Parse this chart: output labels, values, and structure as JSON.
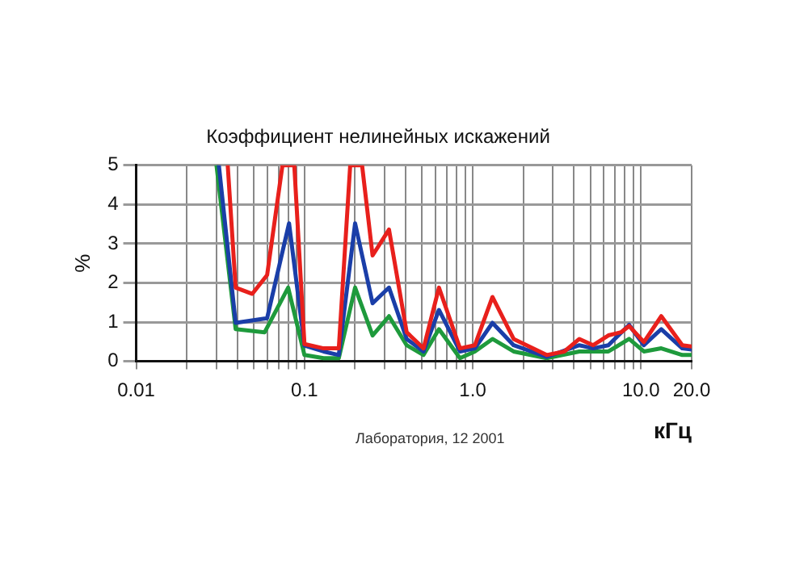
{
  "chart_data": {
    "type": "line",
    "title": "Коэффициент нелинейных искажений",
    "xlabel": "кГц",
    "ylabel": "%",
    "annotations": [
      "Лаборатория, 12 2001"
    ],
    "log": "x",
    "grid": true,
    "legend": false,
    "marker": "none",
    "line_style": "solid",
    "xlim": [
      0.01,
      20
    ],
    "ylim": [
      0,
      5
    ],
    "yticks": [
      0,
      1,
      2,
      3,
      4,
      5
    ],
    "xticks": [
      0.01,
      {
        "value": 0.02,
        "label": null
      },
      {
        "value": 0.03,
        "label": null
      },
      {
        "value": 0.04,
        "label": null
      },
      {
        "value": 0.05,
        "label": null
      },
      {
        "value": 0.06,
        "label": null
      },
      {
        "value": 0.07,
        "label": null
      },
      {
        "value": 0.08,
        "label": null
      },
      {
        "value": 0.09,
        "label": null
      },
      0.1,
      {
        "value": 0.2,
        "label": null
      },
      {
        "value": 0.3,
        "label": null
      },
      {
        "value": 0.4,
        "label": null
      },
      {
        "value": 0.5,
        "label": null
      },
      {
        "value": 0.6,
        "label": null
      },
      {
        "value": 0.7,
        "label": null
      },
      {
        "value": 0.8,
        "label": null
      },
      {
        "value": 0.9,
        "label": null
      },
      {
        "value": 1,
        "label": "1.0"
      },
      {
        "value": 2,
        "label": null
      },
      {
        "value": 3,
        "label": null
      },
      {
        "value": 4,
        "label": null
      },
      {
        "value": 5,
        "label": null
      },
      {
        "value": 6,
        "label": null
      },
      {
        "value": 7,
        "label": null
      },
      {
        "value": 8,
        "label": null
      },
      {
        "value": 9,
        "label": null
      },
      {
        "value": 10,
        "label": "10.0"
      },
      {
        "value": 20,
        "label": "20.0"
      }
    ],
    "series": [
      {
        "color": "#e8201c",
        "x": [
          0.035,
          0.039,
          0.049,
          0.06,
          0.074,
          0.087,
          0.1,
          0.13,
          0.16,
          0.187,
          0.22,
          0.254,
          0.318,
          0.405,
          0.51,
          0.63,
          0.84,
          1.03,
          1.31,
          1.75,
          2.75,
          3.5,
          4.3,
          5.2,
          6.4,
          7.6,
          8.5,
          10.4,
          13.2,
          17.6,
          20
        ],
        "values": [
          5,
          1.88,
          1.72,
          2.2,
          5,
          5,
          0.44,
          0.33,
          0.33,
          5,
          5,
          2.7,
          3.36,
          0.74,
          0.33,
          1.88,
          0.33,
          0.41,
          1.64,
          0.57,
          0.16,
          0.25,
          0.57,
          0.41,
          0.66,
          0.74,
          0.9,
          0.49,
          1.15,
          0.41,
          0.38
        ]
      },
      {
        "color": "#1a3ea8",
        "x": [
          0.031,
          0.039,
          0.06,
          0.081,
          0.1,
          0.13,
          0.16,
          0.2,
          0.254,
          0.318,
          0.405,
          0.51,
          0.63,
          0.84,
          1.03,
          1.31,
          1.75,
          2.75,
          4.3,
          5.2,
          6.4,
          8.5,
          10.4,
          13.2,
          17.6,
          20
        ],
        "values": [
          5,
          0.98,
          1.1,
          3.52,
          0.4,
          0.25,
          0.16,
          3.52,
          1.48,
          1.88,
          0.57,
          0.25,
          1.31,
          0.25,
          0.33,
          0.98,
          0.41,
          0.11,
          0.41,
          0.33,
          0.41,
          0.93,
          0.41,
          0.82,
          0.33,
          0.3
        ]
      },
      {
        "color": "#1e9a3c",
        "x": [
          0.03,
          0.039,
          0.058,
          0.08,
          0.1,
          0.13,
          0.16,
          0.2,
          0.254,
          0.318,
          0.405,
          0.51,
          0.63,
          0.84,
          1.03,
          1.31,
          1.75,
          2.75,
          4.3,
          6.4,
          8.5,
          10.4,
          13.2,
          17.6,
          20
        ],
        "values": [
          5,
          0.82,
          0.74,
          1.88,
          0.16,
          0.08,
          0.08,
          1.88,
          0.66,
          1.15,
          0.41,
          0.16,
          0.82,
          0.08,
          0.25,
          0.57,
          0.25,
          0.08,
          0.25,
          0.25,
          0.57,
          0.25,
          0.33,
          0.16,
          0.16
        ]
      }
    ]
  }
}
